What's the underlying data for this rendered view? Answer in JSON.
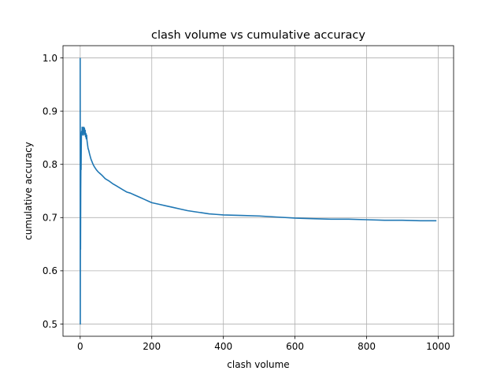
{
  "chart_data": {
    "type": "line",
    "title": "clash volume vs cumulative accuracy",
    "xlabel": "clash volume",
    "ylabel": "cumulative accuracy",
    "xlim": [
      -48,
      1043
    ],
    "ylim": [
      0.477,
      1.023
    ],
    "xticks": [
      0,
      200,
      400,
      600,
      800,
      1000
    ],
    "xtick_labels": [
      "0",
      "200",
      "400",
      "600",
      "800",
      "1000"
    ],
    "yticks": [
      0.5,
      0.6,
      0.7,
      0.8,
      0.9,
      1.0
    ],
    "ytick_labels": [
      "0.5",
      "0.6",
      "0.7",
      "0.8",
      "0.9",
      "1.0"
    ],
    "grid": true,
    "colors": {
      "series": "#1f77b4"
    },
    "series": [
      {
        "x": [
          0,
          0.3,
          0.6,
          1,
          1.5,
          2,
          2.5,
          3,
          3.5,
          4,
          4.5,
          5,
          5.5,
          6,
          6.5,
          7,
          8,
          9,
          10,
          11,
          12,
          13,
          14,
          15,
          16,
          17,
          18,
          19,
          20,
          22,
          24,
          26,
          28,
          30,
          33,
          36,
          40,
          45,
          50,
          60,
          70,
          80,
          90,
          100,
          110,
          120,
          130,
          140,
          150,
          160,
          170,
          180,
          190,
          200,
          220,
          240,
          260,
          280,
          300,
          320,
          340,
          360,
          380,
          400,
          450,
          500,
          550,
          600,
          650,
          700,
          750,
          800,
          850,
          900,
          950,
          995
        ],
        "y": [
          1.0,
          0.5,
          0.667,
          0.64,
          0.75,
          0.8,
          0.79,
          0.83,
          0.857,
          0.862,
          0.86,
          0.855,
          0.87,
          0.866,
          0.858,
          0.869,
          0.86,
          0.855,
          0.87,
          0.862,
          0.868,
          0.856,
          0.864,
          0.852,
          0.858,
          0.848,
          0.855,
          0.845,
          0.84,
          0.83,
          0.826,
          0.82,
          0.815,
          0.81,
          0.805,
          0.8,
          0.795,
          0.79,
          0.786,
          0.78,
          0.773,
          0.769,
          0.764,
          0.76,
          0.756,
          0.752,
          0.748,
          0.746,
          0.743,
          0.74,
          0.737,
          0.734,
          0.731,
          0.728,
          0.725,
          0.722,
          0.719,
          0.716,
          0.713,
          0.711,
          0.709,
          0.707,
          0.706,
          0.705,
          0.704,
          0.703,
          0.701,
          0.699,
          0.698,
          0.697,
          0.697,
          0.696,
          0.695,
          0.695,
          0.694,
          0.694
        ]
      }
    ]
  }
}
